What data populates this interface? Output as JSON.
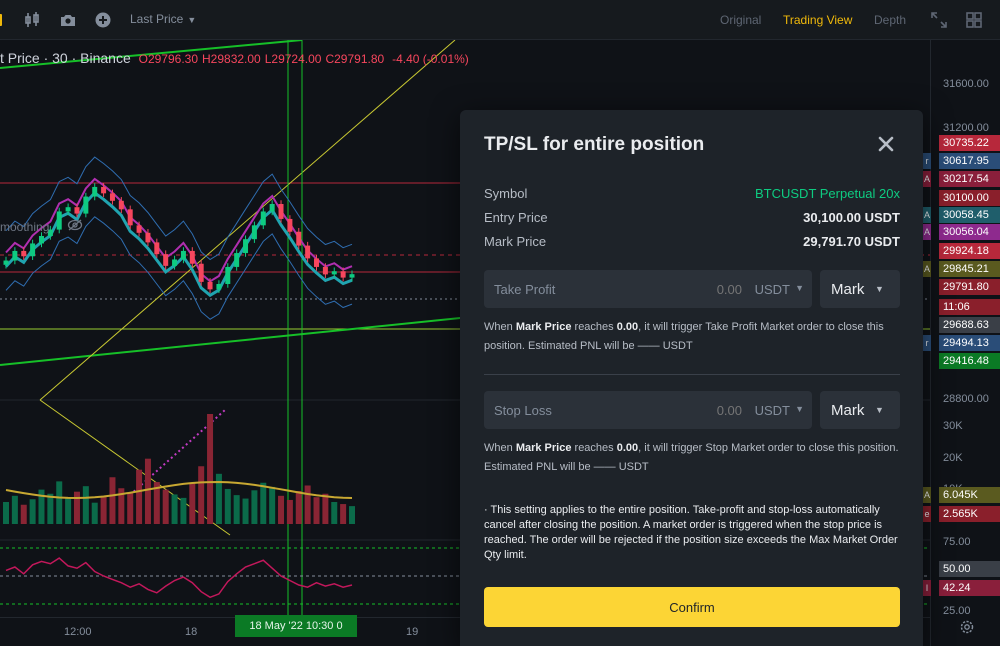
{
  "toolbar": {
    "price_type": "Last Price",
    "views": [
      "Original",
      "Trading View",
      "Depth"
    ],
    "active_view": "Trading View"
  },
  "chart": {
    "symbol_label": "t Price · 30 · Binance",
    "ohlc": [
      {
        "k": "O",
        "v": "29796.30"
      },
      {
        "k": "H",
        "v": "29832.00"
      },
      {
        "k": "L",
        "v": "29724.00"
      },
      {
        "k": "C",
        "v": "29791.80"
      }
    ],
    "change": "-4.40 (-0.01%)",
    "indicator_label": "moothing",
    "time_ticks": [
      "12:00",
      "18",
      "19"
    ],
    "crosshair_time": "18 May '22   10:30",
    "crosshair_time_suffix": "0",
    "price_ticks": [
      {
        "label": "31600.00",
        "y": 31600
      },
      {
        "label": "31200.00",
        "y": 31200
      },
      {
        "label": "29",
        "y": 29600
      },
      {
        "label": "28800.00",
        "y": 28800
      }
    ],
    "volume_ticks": [
      "30K",
      "20K",
      "10K"
    ],
    "rsi_ticks": [
      "75.00",
      "25.00"
    ],
    "price_badges": [
      {
        "label": "30735.22",
        "color": "#b7283b",
        "stub": ""
      },
      {
        "label": "30617.95",
        "color": "#2a4d78",
        "stub": "r"
      },
      {
        "label": "30217.54",
        "color": "#8a1f3b",
        "stub": "A"
      },
      {
        "label": "30100.00",
        "color": "#8a1f2b",
        "stub": ""
      },
      {
        "label": "30058.45",
        "color": "#1f5e6b",
        "stub": "A"
      },
      {
        "label": "30056.04",
        "color": "#8e2a8e",
        "stub": "A"
      },
      {
        "label": "29924.18",
        "color": "#b7283b",
        "stub": ""
      },
      {
        "label": "29845.21",
        "color": "#5a5a1f",
        "stub": "A"
      },
      {
        "label": "29791.80",
        "color": "#8a1f2b",
        "stub": ""
      },
      {
        "label": "11:06",
        "color": "#8a1f2b",
        "stub": ""
      },
      {
        "label": "29688.63",
        "color": "#3a3f47",
        "stub": ""
      },
      {
        "label": "29494.13",
        "color": "#2a4d78",
        "stub": "r"
      },
      {
        "label": "29416.48",
        "color": "#0b7a25",
        "stub": ""
      }
    ],
    "volume_badges": [
      {
        "label": "6.045K",
        "color": "#5a5a1f",
        "stub": "A"
      },
      {
        "label": "2.565K",
        "color": "#8a1f2b",
        "stub": "e"
      }
    ],
    "rsi_badges": [
      {
        "label": "50.00",
        "color": "#3a3f47",
        "stub": ""
      },
      {
        "label": "42.24",
        "color": "#8a1f3b",
        "stub": "I"
      }
    ]
  },
  "chart_data": {
    "type": "candlestick",
    "title": "BTCUSDT · 30 · Binance",
    "ylim": [
      28800,
      31800
    ],
    "closes": [
      29920,
      30010,
      29960,
      30080,
      30150,
      30210,
      30380,
      30420,
      30360,
      30520,
      30610,
      30550,
      30480,
      30400,
      30250,
      30180,
      30090,
      29980,
      29870,
      29930,
      30010,
      29890,
      29720,
      29650,
      29700,
      29860,
      29990,
      30120,
      30250,
      30380,
      30450,
      30310,
      30190,
      30060,
      29940,
      29860,
      29790,
      29820,
      29760,
      29792
    ],
    "volume": [
      3.2,
      4.1,
      2.8,
      3.6,
      5.0,
      4.4,
      6.2,
      3.9,
      4.7,
      5.5,
      3.1,
      4.0,
      6.8,
      5.2,
      4.6,
      7.9,
      9.5,
      6.1,
      5.0,
      4.3,
      3.8,
      5.9,
      8.4,
      16.0,
      7.3,
      5.1,
      4.2,
      3.7,
      4.9,
      6.0,
      5.4,
      4.1,
      3.5,
      4.8,
      5.6,
      3.9,
      4.4,
      3.2,
      2.9,
      2.6
    ],
    "rsi": [
      55,
      58,
      52,
      60,
      63,
      61,
      66,
      59,
      57,
      62,
      54,
      50,
      47,
      44,
      40,
      43,
      38,
      35,
      41,
      46,
      49,
      44,
      36,
      31,
      34,
      45,
      52,
      58,
      61,
      64,
      57,
      50,
      46,
      42,
      40,
      44,
      41,
      43,
      40,
      42
    ]
  },
  "modal": {
    "title": "TP/SL for entire position",
    "rows": [
      {
        "label": "Symbol",
        "value": "BTCUSDT Perpetual 20x"
      },
      {
        "label": "Entry Price",
        "value": "30,100.00 USDT"
      },
      {
        "label": "Mark Price",
        "value": "29,791.70 USDT"
      }
    ],
    "take_profit": {
      "label": "Take Profit",
      "placeholder": "0.00",
      "unit": "USDT",
      "trigger": "Mark",
      "hint_prefix": "When",
      "hint_price": "Mark Price",
      "hint_mid": "reaches",
      "hint_value": "0.00",
      "hint_suffix": ", it will trigger Take Profit Market order to close this position. Estimated PNL will be —— USDT"
    },
    "stop_loss": {
      "label": "Stop Loss",
      "placeholder": "0.00",
      "unit": "USDT",
      "trigger": "Mark",
      "hint_prefix": "When",
      "hint_price": "Mark Price",
      "hint_mid": "reaches",
      "hint_value": "0.00",
      "hint_suffix": ", it will trigger Stop Market order to close this position. Estimated PNL will be —— USDT"
    },
    "note": "· This setting applies to the entire position. Take-profit and stop-loss automatically cancel after closing the position. A market order is triggered when the stop price is reached. The order will be rejected if the position size exceeds the Max Market Order Qty limit.",
    "confirm": "Confirm"
  }
}
